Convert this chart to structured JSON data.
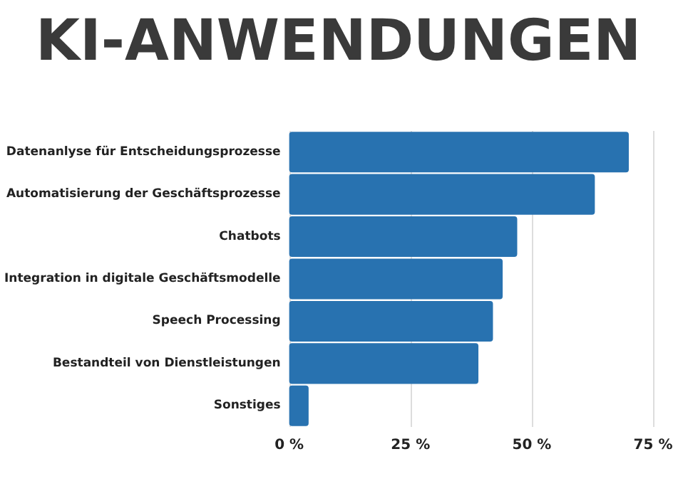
{
  "chart_data": {
    "type": "bar",
    "orientation": "horizontal",
    "title": "KI-ANWENDUNGEN",
    "categories": [
      "Datenanlyse für Entscheidungsprozesse",
      "Automatisierung der Geschäftsprozesse",
      "Chatbots",
      "Integration in digitale Geschäftsmodelle",
      "Speech Processing",
      "Bestandteil von Dienstleistungen",
      "Sonstiges"
    ],
    "values": [
      70,
      63,
      47,
      44,
      42,
      39,
      4
    ],
    "color": "#2872b0",
    "xlim": [
      0,
      75
    ],
    "xticks": [
      {
        "value": 0,
        "label": "0 %"
      },
      {
        "value": 25,
        "label": "25 %"
      },
      {
        "value": 50,
        "label": "50 %"
      },
      {
        "value": 75,
        "label": "75 %"
      }
    ],
    "grid": "x"
  }
}
